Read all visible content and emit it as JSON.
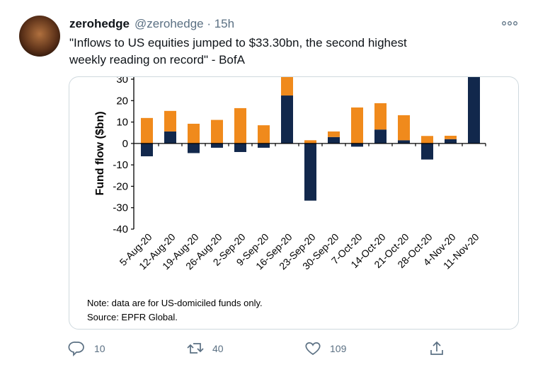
{
  "tweet": {
    "name": "zerohedge",
    "meta": "@zerohedge · 15h",
    "text_lines": [
      "\"Inflows to US equities jumped to $33.30bn, the second highest",
      "weekly reading on record\" - BofA"
    ],
    "replies": "10",
    "retweets": "40",
    "likes": "109"
  },
  "chart_data": {
    "type": "bar",
    "stacked": true,
    "y_label": "Fund flow ($bn)",
    "categories": [
      "5-Aug-20",
      "12-Aug-20",
      "19-Aug-20",
      "26-Aug-20",
      "2-Sep-20",
      "9-Sep-20",
      "16-Sep-20",
      "23-Sep-20",
      "30-Sep-20",
      "7-Oct-20",
      "14-Oct-20",
      "21-Oct-20",
      "28-Oct-20",
      "4-Nov-20",
      "11-Nov-20"
    ],
    "series": [
      {
        "color": "#12284c",
        "values": [
          -6,
          5.6,
          -4.5,
          -2,
          -4,
          -2,
          22.4,
          -26.7,
          3,
          -1.5,
          6.5,
          1.5,
          -7.5,
          2,
          33.3
        ]
      },
      {
        "color": "#f08a1c",
        "values": [
          11.9,
          9.6,
          9.2,
          11,
          16.5,
          8.5,
          9,
          1.5,
          2.6,
          16.8,
          12.3,
          11.7,
          3.5,
          1.6,
          0
        ]
      }
    ],
    "ylim": [
      -40,
      31
    ],
    "yticks": [
      -40,
      -30,
      -20,
      -10,
      0,
      10,
      20,
      30
    ],
    "note": "Note: data are for US-domiciled funds only.",
    "source": "Source: EPFR Global."
  }
}
